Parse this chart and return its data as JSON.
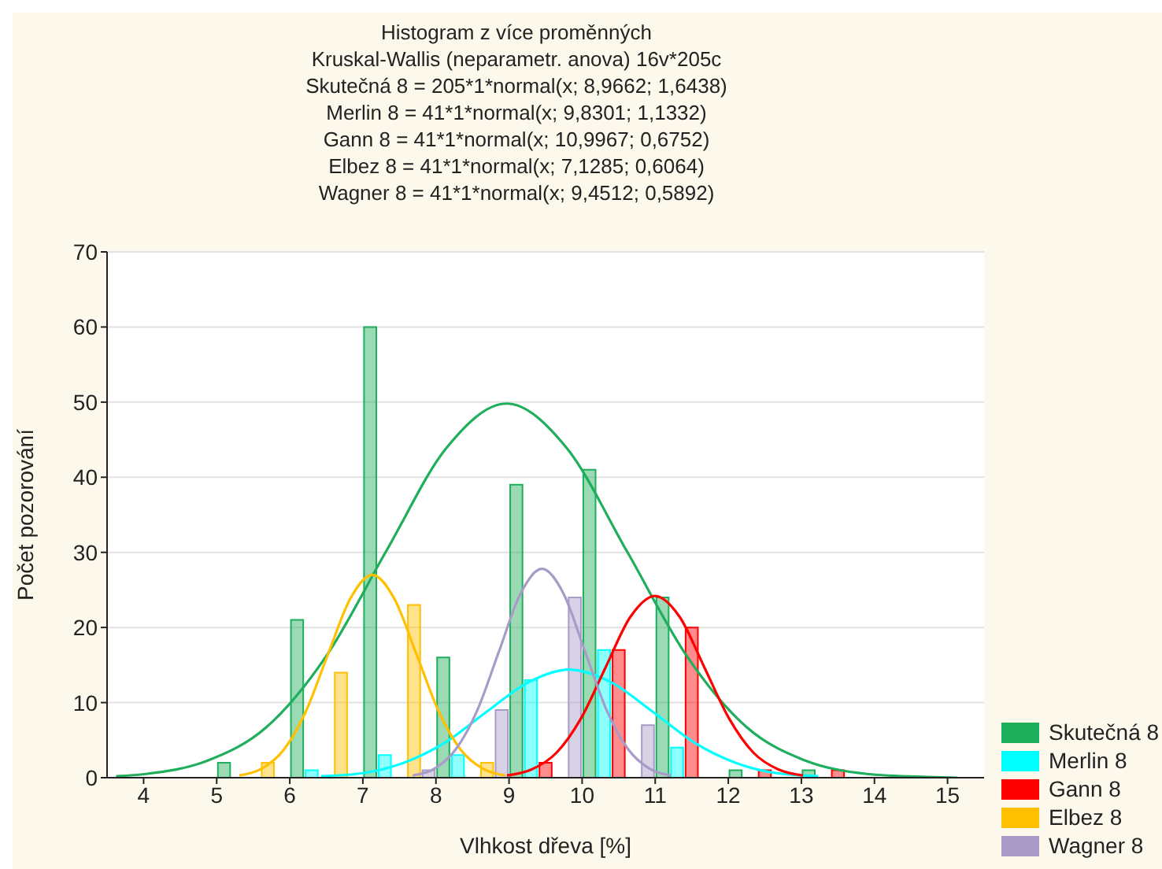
{
  "chart_data": {
    "type": "histogram",
    "title": "Histogram z více proměnných",
    "subtitle": "Kruskal-Wallis (neparametr. anova) 16v*205c",
    "annotations": [
      "Skutečná 8 = 205*1*normal(x; 8,9662; 1,6438)",
      "Merlin 8 = 41*1*normal(x; 9,8301; 1,1332)",
      "Gann 8 = 41*1*normal(x; 10,9967; 0,6752)",
      "Elbez 8 = 41*1*normal(x; 7,1285; 0,6064)",
      "Wagner 8 = 41*1*normal(x; 9,4512; 0,5892)"
    ],
    "xlabel": "Vlhkost dřeva [%]",
    "ylabel": "Počet pozorování",
    "bins": [
      5,
      6,
      7,
      8,
      9,
      10,
      11,
      12,
      13,
      14
    ],
    "series": [
      {
        "name": "Skutečná 8",
        "color": "#1fae5c",
        "values": [
          2,
          21,
          60,
          16,
          39,
          41,
          24,
          1,
          1
        ]
      },
      {
        "name": "Merlin 8",
        "color": "#00ffff",
        "values": [
          0,
          1,
          3,
          3,
          13,
          17,
          4,
          0,
          0
        ]
      },
      {
        "name": "Gann 8",
        "color": "#ff0000",
        "values": [
          0,
          0,
          0,
          0,
          2,
          17,
          20,
          1,
          1
        ]
      },
      {
        "name": "Elbez 8",
        "color": "#ffc000",
        "values": [
          2,
          14,
          23,
          2,
          0,
          0,
          0,
          0,
          0
        ]
      },
      {
        "name": "Wagner 8",
        "color": "#a99bc8",
        "values": [
          0,
          0,
          1,
          9,
          24,
          7,
          0,
          0,
          0
        ]
      },
      {
        "type": "line",
        "color": "#1fae5c",
        "x": [
          3.623,
          4.034,
          4.856,
          5.678,
          6.5,
          7.322,
          8.144,
          8.966,
          9.788,
          10.61,
          11.432,
          12.254,
          13.076,
          13.898,
          14.72,
          15.131
        ],
        "values": [
          0.2,
          0.5,
          2.2,
          6.7,
          16.2,
          30.2,
          43.9,
          49.8,
          43.9,
          30.2,
          16.2,
          6.7,
          2.2,
          0.5,
          0.1,
          0
        ]
      },
      {
        "type": "line",
        "color": "#00ffff",
        "x": [
          6.431,
          6.997,
          7.564,
          8.13,
          8.697,
          9.263,
          9.83,
          10.397,
          10.963,
          11.53,
          12.096,
          12.663,
          13.229
        ],
        "values": [
          0.2,
          0.6,
          2,
          4.7,
          8.8,
          12.7,
          14.4,
          12.7,
          8.8,
          4.7,
          2,
          0.6,
          0.2
        ]
      },
      {
        "type": "line",
        "color": "#ff0000",
        "x": [
          8.972,
          9.31,
          9.647,
          9.985,
          10.322,
          10.66,
          10.997,
          11.335,
          11.672,
          12.01,
          12.347,
          12.685,
          13.023
        ],
        "values": [
          0.3,
          1.1,
          3.3,
          7.9,
          14.7,
          21.4,
          24.2,
          21.4,
          14.7,
          7.9,
          3.3,
          1.1,
          0.3
        ]
      },
      {
        "type": "line",
        "color": "#ffc000",
        "x": [
          5.31,
          5.613,
          5.916,
          6.219,
          6.522,
          6.826,
          7.129,
          7.432,
          7.735,
          8.038,
          8.341,
          8.645,
          8.948
        ],
        "values": [
          0.3,
          1.2,
          3.7,
          8.8,
          16.4,
          23.8,
          27,
          23.8,
          16.4,
          8.8,
          3.7,
          1.2,
          0.3
        ]
      },
      {
        "type": "line",
        "color": "#a99bc8",
        "x": [
          7.683,
          7.978,
          8.273,
          8.567,
          8.862,
          9.157,
          9.451,
          9.746,
          10.04,
          10.335,
          10.629,
          10.924,
          11.218
        ],
        "values": [
          0.3,
          1.2,
          3.8,
          9,
          16.8,
          24.5,
          27.8,
          24.5,
          16.8,
          9,
          3.8,
          1.2,
          0.3
        ]
      }
    ],
    "xlim": [
      3.5,
      15.5
    ],
    "xticks": [
      4,
      5,
      6,
      7,
      8,
      9,
      10,
      11,
      12,
      13,
      14,
      15
    ],
    "ylim": [
      0,
      70
    ],
    "yticks": [
      0,
      10,
      20,
      30,
      40,
      50,
      60,
      70
    ],
    "grid": "y",
    "legend": "right",
    "marker": "none"
  }
}
